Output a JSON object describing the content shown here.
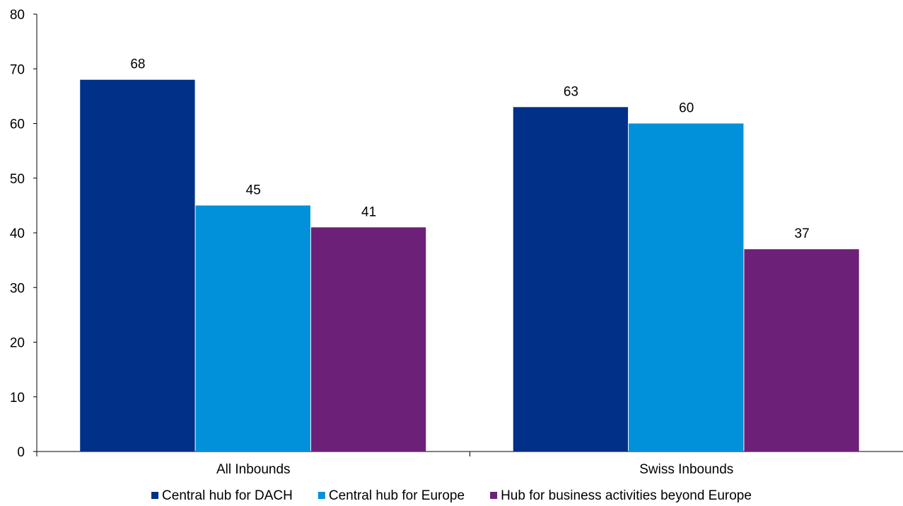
{
  "chart_data": {
    "type": "bar",
    "categories": [
      "All Inbounds",
      "Swiss Inbounds"
    ],
    "series": [
      {
        "name": "Central hub for DACH",
        "values": [
          68,
          63
        ],
        "color": "#003087"
      },
      {
        "name": "Central hub for Europe",
        "values": [
          45,
          60
        ],
        "color": "#0091DA"
      },
      {
        "name": "Hub for business activities beyond Europe",
        "values": [
          41,
          37
        ],
        "color": "#6D2077"
      }
    ],
    "ylim": [
      0,
      80
    ],
    "yticks": [
      0,
      10,
      20,
      30,
      40,
      50,
      60,
      70,
      80
    ],
    "grid": false,
    "legend_position": "bottom",
    "data_labels": true
  }
}
